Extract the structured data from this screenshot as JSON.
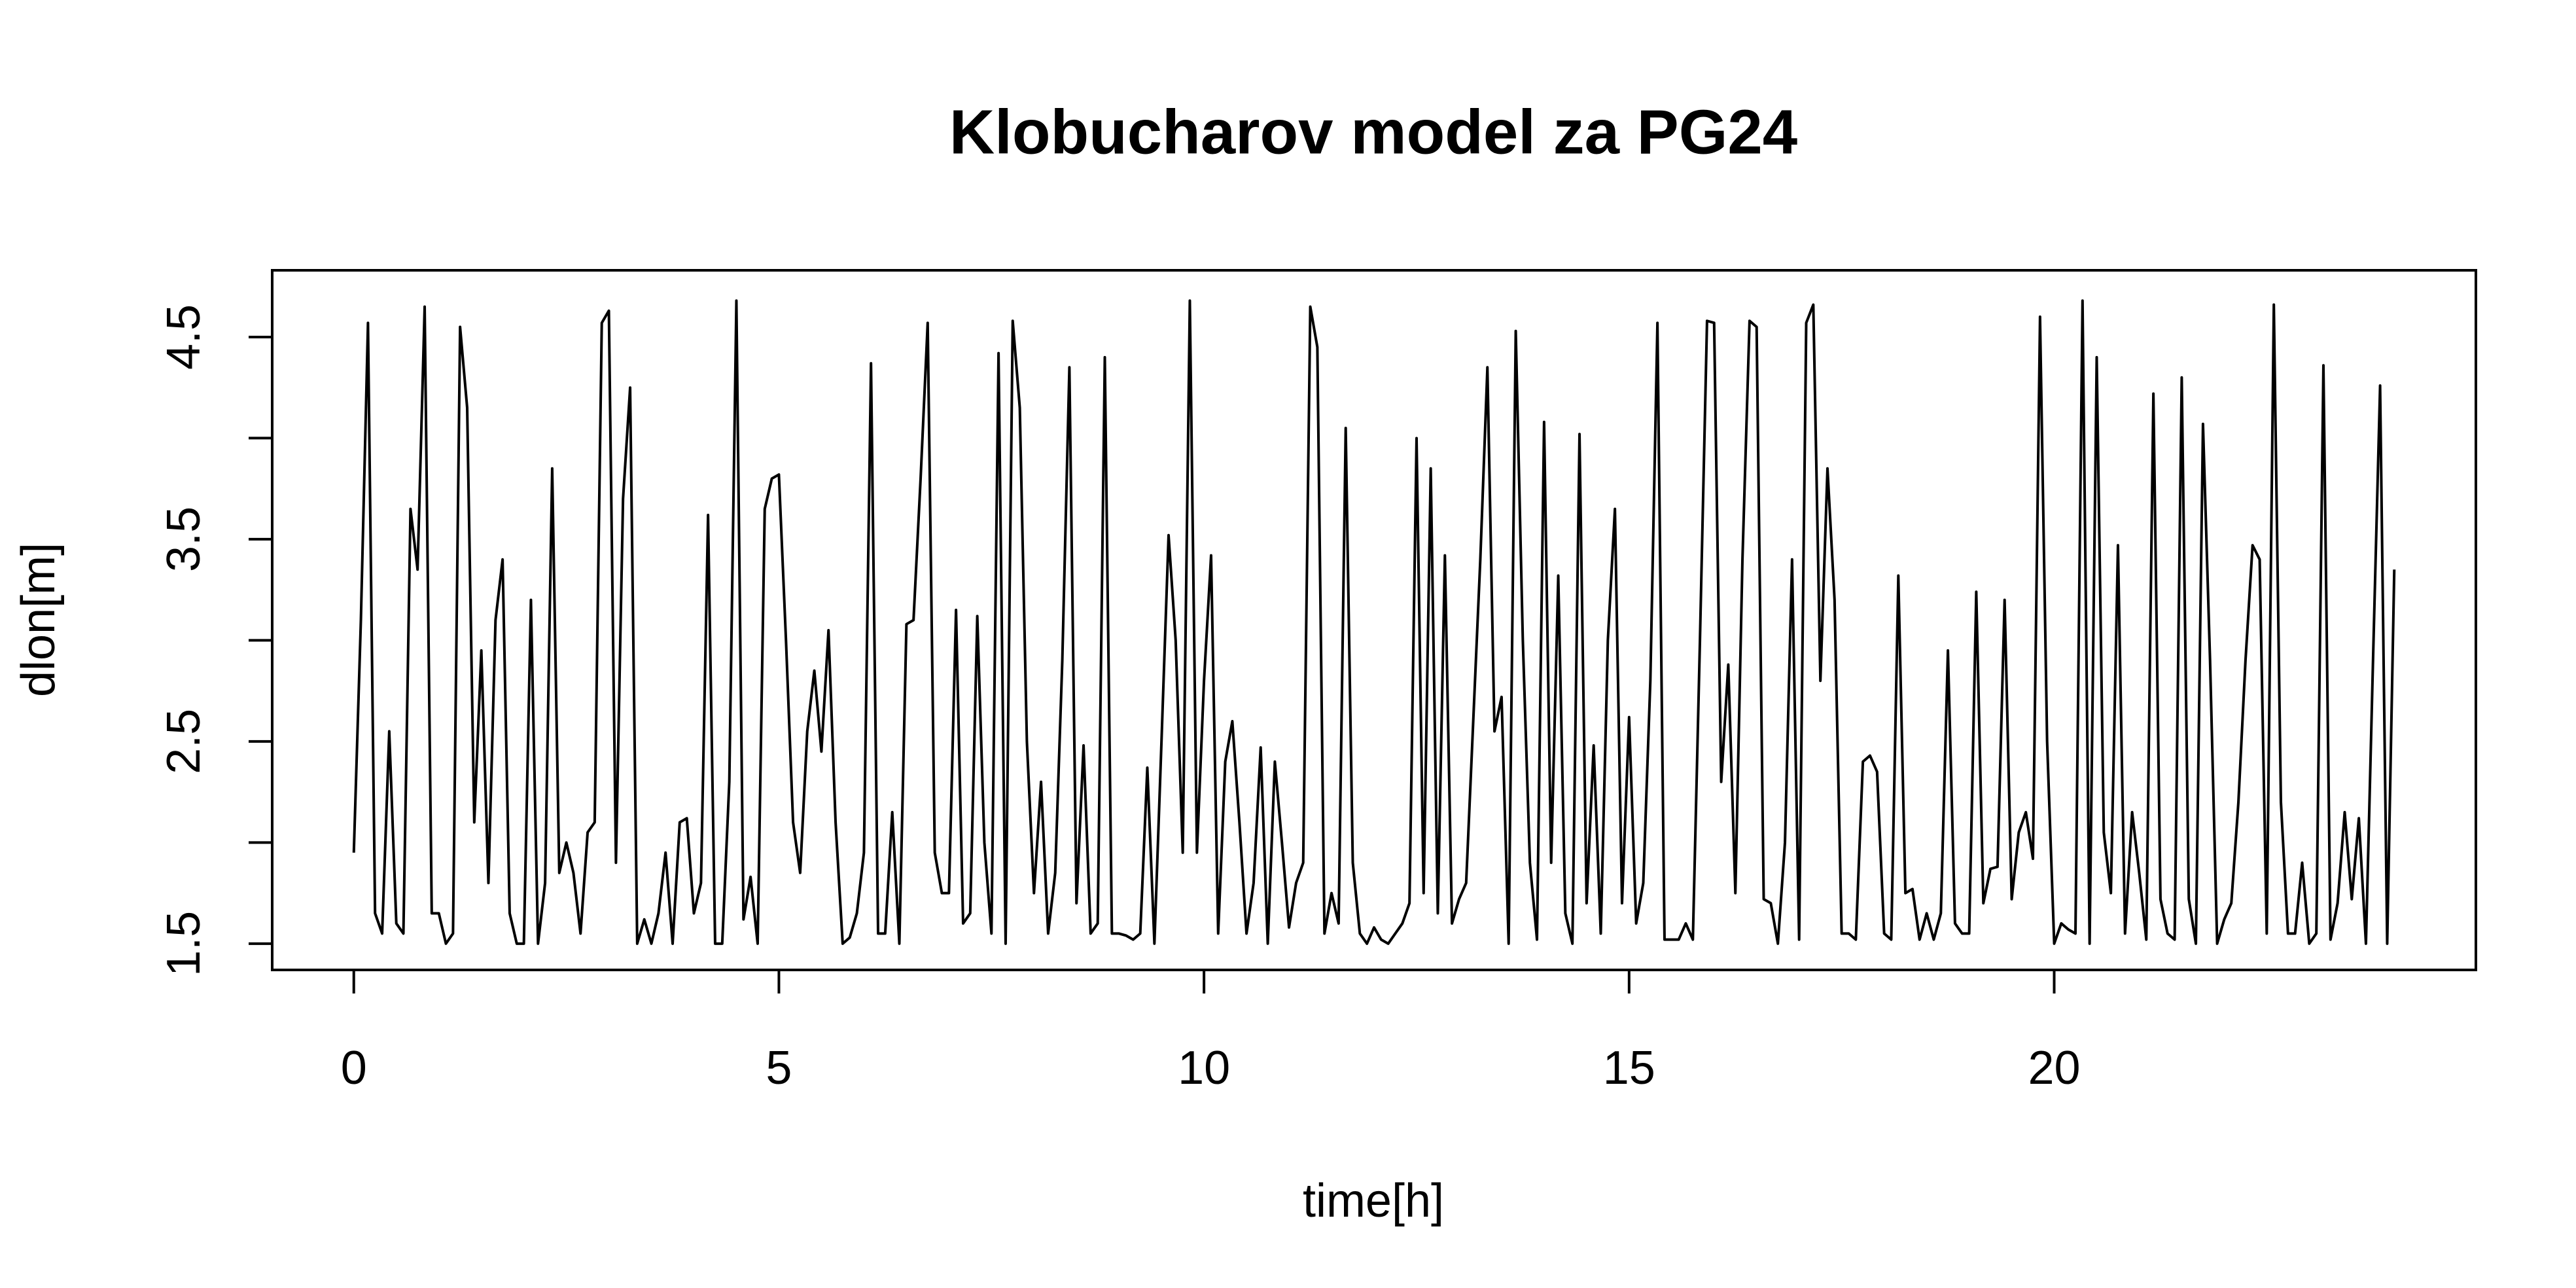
{
  "chart_data": {
    "type": "line",
    "title": "Klobucharov model za PG24",
    "xlabel": "time[h]",
    "ylabel": "dlon[m]",
    "color": "#000000",
    "x": [
      0,
      0.0833,
      0.1667,
      0.25,
      0.3333,
      0.4167,
      0.5,
      0.5833,
      0.6667,
      0.75,
      0.8333,
      0.9167,
      1,
      1.0833,
      1.1667,
      1.25,
      1.3333,
      1.4167,
      1.5,
      1.5833,
      1.6667,
      1.75,
      1.8333,
      1.9167,
      2,
      2.0833,
      2.1667,
      2.25,
      2.3333,
      2.4167,
      2.5,
      2.5833,
      2.6667,
      2.75,
      2.8333,
      2.9167,
      3,
      3.0833,
      3.1667,
      3.25,
      3.3333,
      3.4167,
      3.5,
      3.5833,
      3.6667,
      3.75,
      3.8333,
      3.9167,
      4,
      4.0833,
      4.1667,
      4.25,
      4.3333,
      4.4167,
      4.5,
      4.5833,
      4.6667,
      4.75,
      4.8333,
      4.9167,
      5,
      5.0833,
      5.1667,
      5.25,
      5.3333,
      5.4167,
      5.5,
      5.5833,
      5.6667,
      5.75,
      5.8333,
      5.9167,
      6,
      6.0833,
      6.1667,
      6.25,
      6.3333,
      6.4167,
      6.5,
      6.5833,
      6.6667,
      6.75,
      6.8333,
      6.9167,
      7,
      7.0833,
      7.1667,
      7.25,
      7.3333,
      7.4167,
      7.5,
      7.5833,
      7.6667,
      7.75,
      7.8333,
      7.9167,
      8,
      8.0833,
      8.1667,
      8.25,
      8.3333,
      8.4167,
      8.5,
      8.5833,
      8.6667,
      8.75,
      8.8333,
      8.9167,
      9,
      9.0833,
      9.1667,
      9.25,
      9.3333,
      9.4167,
      9.5,
      9.5833,
      9.6667,
      9.75,
      9.8333,
      9.9167,
      10,
      10.0833,
      10.1667,
      10.25,
      10.3333,
      10.4167,
      10.5,
      10.5833,
      10.6667,
      10.75,
      10.8333,
      10.9167,
      11,
      11.0833,
      11.1667,
      11.25,
      11.3333,
      11.4167,
      11.5,
      11.5833,
      11.6667,
      11.75,
      11.8333,
      11.9167,
      12,
      12.0833,
      12.1667,
      12.25,
      12.3333,
      12.4167,
      12.5,
      12.5833,
      12.6667,
      12.75,
      12.8333,
      12.9167,
      13,
      13.0833,
      13.1667,
      13.25,
      13.3333,
      13.4167,
      13.5,
      13.5833,
      13.6667,
      13.75,
      13.8333,
      13.9167,
      14,
      14.0833,
      14.1667,
      14.25,
      14.3333,
      14.4167,
      14.5,
      14.5833,
      14.6667,
      14.75,
      14.8333,
      14.9167,
      15,
      15.0833,
      15.1667,
      15.25,
      15.3333,
      15.4167,
      15.5,
      15.5833,
      15.6667,
      15.75,
      15.8333,
      15.9167,
      16,
      16.0833,
      16.1667,
      16.25,
      16.3333,
      16.4167,
      16.5,
      16.5833,
      16.6667,
      16.75,
      16.8333,
      16.9167,
      17,
      17.0833,
      17.1667,
      17.25,
      17.3333,
      17.4167,
      17.5,
      17.5833,
      17.6667,
      17.75,
      17.8333,
      17.9167,
      18,
      18.0833,
      18.1667,
      18.25,
      18.3333,
      18.4167,
      18.5,
      18.5833,
      18.6667,
      18.75,
      18.8333,
      18.9167,
      19,
      19.0833,
      19.1667,
      19.25,
      19.3333,
      19.4167,
      19.5,
      19.5833,
      19.6667,
      19.75,
      19.8333,
      19.9167,
      20,
      20.0833,
      20.1667,
      20.25,
      20.3333,
      20.4167,
      20.5,
      20.5833,
      20.6667,
      20.75,
      20.8333,
      20.9167,
      21,
      21.0833,
      21.1667,
      21.25,
      21.3333,
      21.4167,
      21.5,
      21.5833,
      21.6667,
      21.75,
      21.8333,
      21.9167,
      22,
      22.0833,
      22.1667,
      22.25,
      22.3333,
      22.4167,
      22.5,
      22.5833,
      22.6667,
      22.75,
      22.8333,
      22.9167,
      23,
      23.0833,
      23.1667,
      23.25,
      23.3333,
      23.4167,
      23.5,
      23.5833,
      23.6667,
      23.75,
      23.8333,
      23.9167,
      24
    ],
    "values": [
      1.95,
      3.1,
      4.57,
      1.65,
      1.55,
      2.55,
      1.6,
      1.55,
      3.65,
      3.35,
      4.65,
      1.65,
      1.65,
      1.5,
      1.55,
      4.55,
      4.15,
      2.1,
      2.95,
      1.8,
      3.1,
      3.4,
      1.65,
      1.5,
      1.5,
      3.2,
      1.5,
      1.8,
      3.85,
      1.85,
      2.0,
      1.85,
      1.55,
      2.05,
      2.1,
      4.57,
      4.63,
      1.9,
      3.7,
      4.25,
      1.5,
      1.62,
      1.5,
      1.65,
      1.95,
      1.5,
      2.1,
      2.12,
      1.65,
      1.8,
      3.62,
      1.5,
      1.5,
      2.3,
      4.68,
      1.62,
      1.83,
      1.5,
      3.65,
      3.8,
      3.82,
      3.0,
      2.1,
      1.85,
      2.55,
      2.85,
      2.45,
      3.05,
      2.1,
      1.5,
      1.53,
      1.65,
      1.95,
      4.37,
      1.55,
      1.55,
      2.15,
      1.5,
      3.08,
      3.1,
      3.8,
      4.57,
      1.95,
      1.75,
      1.75,
      3.15,
      1.6,
      1.65,
      3.12,
      2.0,
      1.55,
      4.42,
      1.5,
      4.58,
      4.15,
      2.5,
      1.75,
      2.3,
      1.55,
      1.85,
      2.9,
      4.35,
      1.7,
      2.48,
      1.55,
      1.6,
      4.4,
      1.55,
      1.55,
      1.54,
      1.52,
      1.55,
      2.37,
      1.5,
      2.5,
      3.52,
      3.0,
      1.95,
      4.68,
      1.95,
      2.8,
      3.42,
      1.55,
      2.4,
      2.6,
      2.1,
      1.55,
      1.8,
      2.47,
      1.5,
      2.4,
      2.0,
      1.58,
      1.8,
      1.9,
      4.65,
      4.45,
      1.55,
      1.75,
      1.6,
      4.05,
      1.9,
      1.55,
      1.5,
      1.58,
      1.52,
      1.5,
      1.55,
      1.6,
      1.7,
      4.0,
      1.75,
      3.85,
      1.65,
      3.42,
      1.6,
      1.72,
      1.8,
      2.6,
      3.4,
      4.35,
      2.55,
      2.72,
      1.5,
      4.53,
      3.0,
      1.9,
      1.52,
      4.08,
      1.9,
      3.32,
      1.65,
      1.5,
      4.02,
      1.7,
      2.48,
      1.55,
      3.0,
      3.65,
      1.7,
      2.62,
      1.6,
      1.8,
      2.8,
      4.57,
      1.52,
      1.52,
      1.52,
      1.6,
      1.52,
      3.0,
      4.58,
      4.57,
      2.3,
      2.88,
      1.75,
      3.4,
      4.58,
      4.55,
      1.72,
      1.7,
      1.5,
      2.0,
      3.4,
      1.52,
      4.57,
      4.66,
      2.8,
      3.85,
      3.2,
      1.55,
      1.55,
      1.52,
      2.4,
      2.43,
      2.35,
      1.55,
      1.52,
      3.32,
      1.75,
      1.77,
      1.52,
      1.65,
      1.52,
      1.65,
      2.95,
      1.6,
      1.55,
      1.55,
      3.24,
      1.7,
      1.87,
      1.88,
      3.2,
      1.72,
      2.05,
      2.15,
      1.92,
      4.6,
      2.5,
      1.5,
      1.6,
      1.57,
      1.55,
      4.68,
      1.5,
      4.4,
      2.05,
      1.75,
      3.47,
      1.55,
      2.15,
      1.85,
      1.52,
      4.22,
      1.72,
      1.55,
      1.52,
      4.3,
      1.72,
      1.5,
      4.07,
      2.9,
      1.5,
      1.62,
      1.7,
      2.2,
      2.9,
      3.47,
      3.4,
      1.55,
      4.66,
      2.2,
      1.55,
      1.55,
      1.9,
      1.5,
      1.55,
      4.36,
      1.52,
      1.7,
      2.15,
      1.72,
      2.12,
      1.5,
      2.9,
      4.26,
      1.5,
      3.35
    ],
    "xlim": [
      -0.96,
      24.96
    ],
    "xticks": [
      0,
      5,
      10,
      15,
      20
    ],
    "ylim": [
      1.37,
      4.83
    ],
    "yticks": [
      1.5,
      2.5,
      3.5,
      4.5
    ],
    "yminor_ticks": [
      2,
      3,
      4
    ]
  }
}
